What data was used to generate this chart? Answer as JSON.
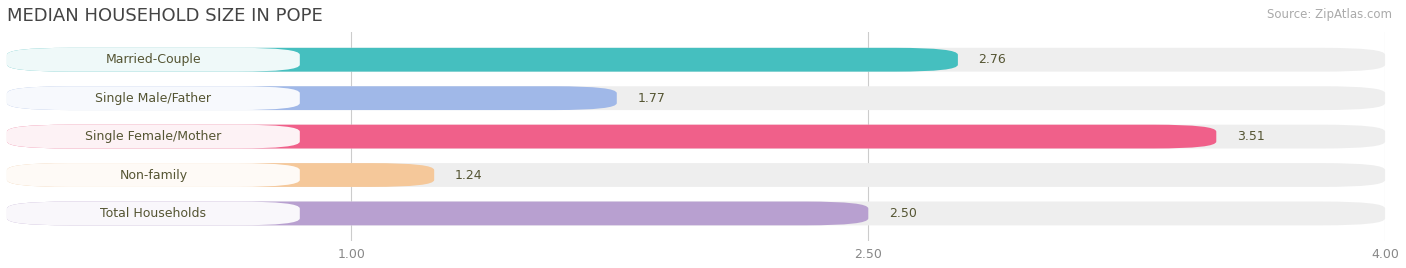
{
  "title": "MEDIAN HOUSEHOLD SIZE IN POPE",
  "source": "Source: ZipAtlas.com",
  "categories": [
    "Married-Couple",
    "Single Male/Father",
    "Single Female/Mother",
    "Non-family",
    "Total Households"
  ],
  "values": [
    2.76,
    1.77,
    3.51,
    1.24,
    2.5
  ],
  "value_labels": [
    "2.76",
    "1.77",
    "3.51",
    "1.24",
    "2.50"
  ],
  "bar_colors": [
    "#45bfbf",
    "#a0b8e8",
    "#f0608a",
    "#f5c89a",
    "#b8a0d0"
  ],
  "xlim_min": 0,
  "xlim_max": 4.0,
  "xticks": [
    1.0,
    2.5,
    4.0
  ],
  "xtick_labels": [
    "1.00",
    "2.50",
    "4.00"
  ],
  "background_color": "#ffffff",
  "bar_bg_color": "#eeeeee",
  "label_bg_color": "#ffffff",
  "title_fontsize": 13,
  "label_fontsize": 9,
  "value_fontsize": 9,
  "source_fontsize": 8.5,
  "tick_fontsize": 9
}
